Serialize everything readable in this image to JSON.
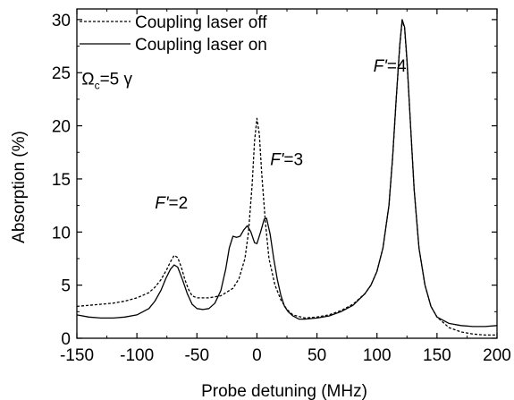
{
  "chart_data": {
    "type": "line",
    "xlabel": "Probe detuning (MHz)",
    "ylabel": "Absorption (%)",
    "xlim": [
      -150,
      200
    ],
    "ylim": [
      0,
      31
    ],
    "xticks": [
      -150,
      -100,
      -50,
      0,
      50,
      100,
      150,
      200
    ],
    "yticks": [
      0,
      5,
      10,
      15,
      20,
      25,
      30
    ],
    "grid": false,
    "legend": "top-left",
    "series": [
      {
        "name": "Coupling laser off",
        "style": "dashed",
        "points": [
          [
            -150,
            3.0
          ],
          [
            -140,
            3.1
          ],
          [
            -130,
            3.2
          ],
          [
            -120,
            3.3
          ],
          [
            -110,
            3.5
          ],
          [
            -100,
            3.8
          ],
          [
            -90,
            4.3
          ],
          [
            -85,
            4.8
          ],
          [
            -80,
            5.5
          ],
          [
            -75,
            6.5
          ],
          [
            -72,
            7.2
          ],
          [
            -69,
            7.8
          ],
          [
            -66,
            7.6
          ],
          [
            -63,
            6.7
          ],
          [
            -60,
            5.5
          ],
          [
            -57,
            4.6
          ],
          [
            -54,
            4.0
          ],
          [
            -50,
            3.8
          ],
          [
            -40,
            3.8
          ],
          [
            -30,
            4.0
          ],
          [
            -20,
            4.7
          ],
          [
            -15,
            5.6
          ],
          [
            -10,
            7.5
          ],
          [
            -7,
            10.0
          ],
          [
            -4,
            14.5
          ],
          [
            -2,
            18.5
          ],
          [
            0,
            20.7
          ],
          [
            2,
            19.2
          ],
          [
            4,
            15.5
          ],
          [
            7,
            11.0
          ],
          [
            10,
            7.5
          ],
          [
            15,
            5.0
          ],
          [
            20,
            3.6
          ],
          [
            25,
            2.7
          ],
          [
            30,
            2.2
          ],
          [
            40,
            1.9
          ],
          [
            50,
            2.0
          ],
          [
            60,
            2.2
          ],
          [
            70,
            2.6
          ],
          [
            80,
            3.2
          ],
          [
            90,
            4.2
          ],
          [
            95,
            5.0
          ],
          [
            100,
            6.3
          ],
          [
            105,
            8.5
          ],
          [
            110,
            12.5
          ],
          [
            113,
            17.0
          ],
          [
            116,
            22.5
          ],
          [
            119,
            27.5
          ],
          [
            121,
            29.9
          ],
          [
            123,
            29.2
          ],
          [
            125,
            26.0
          ],
          [
            128,
            20.0
          ],
          [
            131,
            14.0
          ],
          [
            135,
            8.5
          ],
          [
            140,
            5.0
          ],
          [
            145,
            3.0
          ],
          [
            150,
            2.0
          ],
          [
            160,
            1.0
          ],
          [
            170,
            0.6
          ],
          [
            180,
            0.4
          ],
          [
            190,
            0.3
          ],
          [
            200,
            0.3
          ]
        ]
      },
      {
        "name": "Coupling laser on",
        "style": "solid",
        "points": [
          [
            -150,
            2.2
          ],
          [
            -140,
            2.0
          ],
          [
            -130,
            1.9
          ],
          [
            -120,
            1.9
          ],
          [
            -110,
            2.0
          ],
          [
            -100,
            2.2
          ],
          [
            -90,
            2.8
          ],
          [
            -85,
            3.5
          ],
          [
            -80,
            4.5
          ],
          [
            -76,
            5.6
          ],
          [
            -72,
            6.5
          ],
          [
            -69,
            6.9
          ],
          [
            -66,
            6.7
          ],
          [
            -62,
            5.5
          ],
          [
            -58,
            4.2
          ],
          [
            -54,
            3.2
          ],
          [
            -50,
            2.8
          ],
          [
            -45,
            2.7
          ],
          [
            -40,
            2.8
          ],
          [
            -35,
            3.3
          ],
          [
            -30,
            4.5
          ],
          [
            -26,
            6.5
          ],
          [
            -23,
            8.5
          ],
          [
            -20,
            9.6
          ],
          [
            -17,
            9.5
          ],
          [
            -14,
            9.6
          ],
          [
            -11,
            10.2
          ],
          [
            -8,
            10.6
          ],
          [
            -5,
            10.0
          ],
          [
            -2,
            9.0
          ],
          [
            0,
            8.9
          ],
          [
            3,
            10.0
          ],
          [
            6,
            11.2
          ],
          [
            8,
            11.3
          ],
          [
            11,
            9.8
          ],
          [
            14,
            7.5
          ],
          [
            17,
            5.5
          ],
          [
            20,
            4.0
          ],
          [
            23,
            3.0
          ],
          [
            26,
            2.5
          ],
          [
            30,
            2.1
          ],
          [
            35,
            1.8
          ],
          [
            40,
            1.8
          ],
          [
            50,
            1.9
          ],
          [
            60,
            2.1
          ],
          [
            70,
            2.5
          ],
          [
            80,
            3.1
          ],
          [
            90,
            4.2
          ],
          [
            95,
            5.0
          ],
          [
            100,
            6.3
          ],
          [
            105,
            8.5
          ],
          [
            110,
            12.5
          ],
          [
            113,
            17.0
          ],
          [
            116,
            22.5
          ],
          [
            119,
            27.6
          ],
          [
            121,
            30.0
          ],
          [
            123,
            29.3
          ],
          [
            125,
            26.2
          ],
          [
            128,
            20.0
          ],
          [
            131,
            14.0
          ],
          [
            135,
            8.5
          ],
          [
            140,
            5.0
          ],
          [
            145,
            3.0
          ],
          [
            150,
            2.0
          ],
          [
            160,
            1.4
          ],
          [
            170,
            1.2
          ],
          [
            180,
            1.1
          ],
          [
            190,
            1.1
          ],
          [
            200,
            1.2
          ]
        ]
      }
    ],
    "annotations": [
      {
        "prefix": "F'",
        "suffix": "=2",
        "x": -85,
        "y": 12.2
      },
      {
        "prefix": "F'",
        "suffix": "=3",
        "x": 11,
        "y": 16.3
      },
      {
        "prefix": "F'",
        "suffix": "=4",
        "x": 97,
        "y": 25.1
      }
    ],
    "rabi_label": {
      "symbol": "Ω",
      "sub": "c",
      "text": "=5 γ",
      "x": -146,
      "y": 23.9
    }
  }
}
